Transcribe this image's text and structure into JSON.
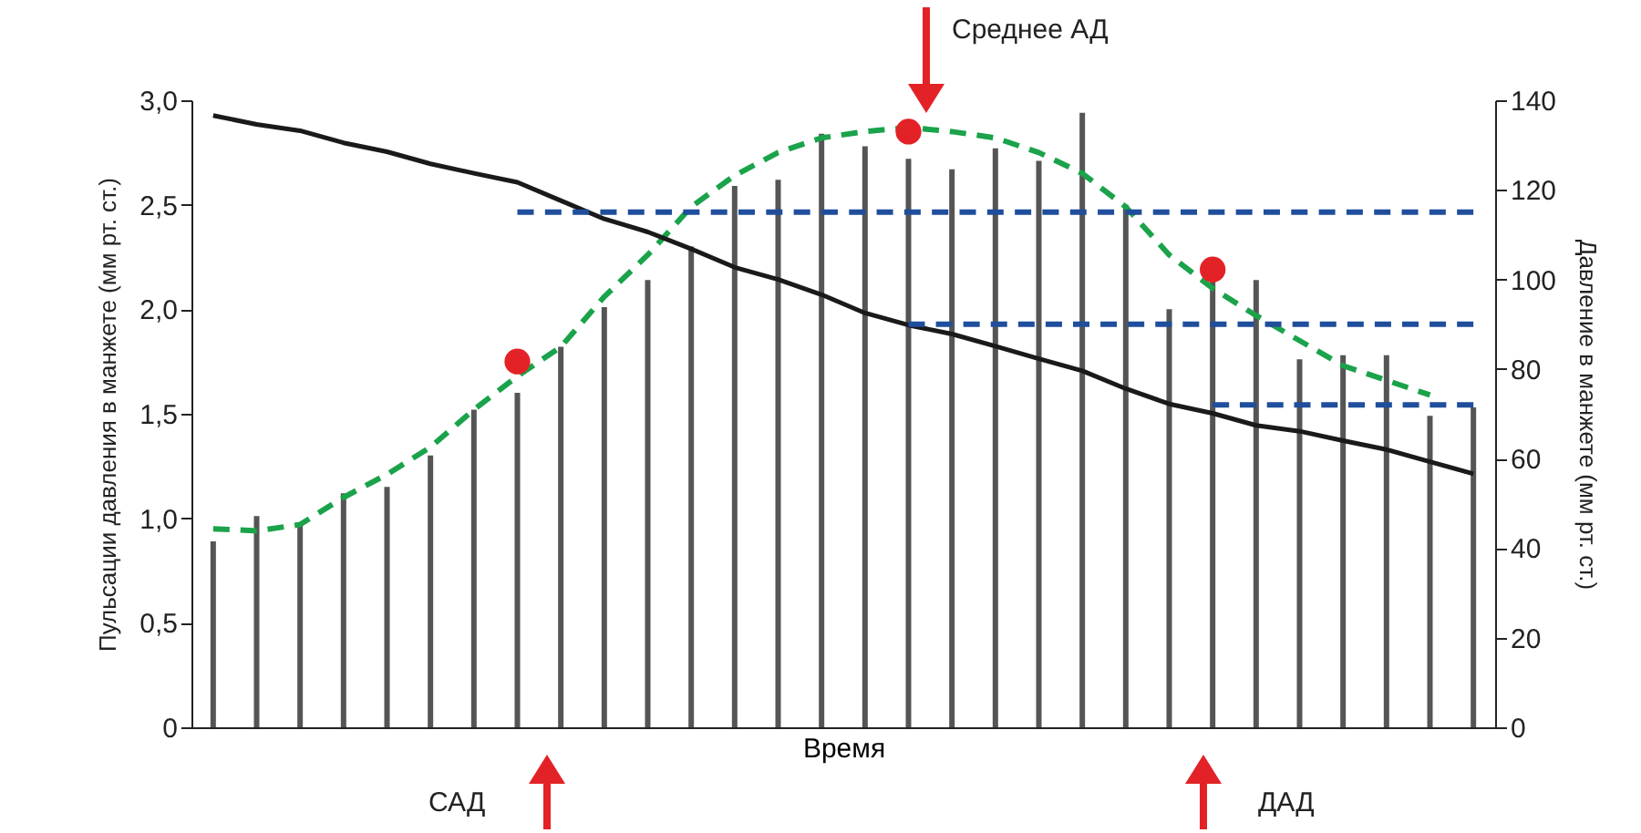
{
  "chart_data": {
    "type": "bar",
    "xlabel": "Время",
    "ylabel": "Пульсации давления в манжете (мм рт. ст.)",
    "y2label": "Давление в манжете (мм рт. ст.)",
    "categories": [
      null,
      null,
      null,
      null,
      null,
      null,
      null,
      null,
      null,
      null,
      null,
      null,
      null,
      null,
      null,
      null,
      null,
      null,
      null,
      null,
      null,
      null,
      null,
      null,
      null,
      null,
      null,
      null,
      null,
      null
    ],
    "ylim": [
      0,
      3
    ],
    "yticks": [
      0,
      {
        "value": 0.5,
        "label": "0,5"
      },
      {
        "value": 1,
        "label": "1,0"
      },
      {
        "value": 1.5,
        "label": "1,5"
      },
      {
        "value": 2,
        "label": "2,0"
      },
      {
        "value": 2.5,
        "label": "2,5"
      },
      {
        "value": 3,
        "label": "3,0"
      }
    ],
    "y2lim": [
      0,
      140
    ],
    "y2ticks": [
      0,
      20,
      40,
      60,
      80,
      100,
      120,
      140
    ],
    "series": [
      {
        "color": "#555555",
        "values": [
          0.89,
          1.01,
          0.98,
          1.12,
          1.15,
          1.3,
          1.52,
          1.6,
          1.82,
          2.01,
          2.14,
          2.3,
          2.59,
          2.62,
          2.84,
          2.78,
          2.72,
          2.67,
          2.77,
          2.71,
          2.94,
          2.5,
          2.0,
          2.14,
          2.14,
          1.76,
          1.78,
          1.78,
          1.49,
          1.53
        ]
      },
      {
        "type": "line",
        "axis": "y2",
        "color": "#1a1a1a",
        "line_style": "solid",
        "values": [
          136.6,
          134.6,
          133.2,
          130.5,
          128.5,
          125.8,
          123.7,
          121.7,
          117.6,
          113.5,
          110.6,
          106.8,
          102.7,
          100,
          96.6,
          92.5,
          89.8,
          87.8,
          85.1,
          82.3,
          79.6,
          75.6,
          72.2,
          70.1,
          67.4,
          66.1,
          64,
          62,
          59.3,
          56.6
        ]
      },
      {
        "type": "line",
        "axis": "y2",
        "color": "#1f4e9c",
        "line_style": "dashed",
        "values": [
          null,
          null,
          null,
          null,
          null,
          null,
          null,
          115,
          115,
          115,
          115,
          115,
          115,
          115,
          115,
          115,
          115,
          115,
          115,
          115,
          115,
          115,
          115,
          115,
          115,
          115,
          115,
          115,
          115,
          115
        ]
      },
      {
        "type": "line",
        "axis": "y2",
        "color": "#1f4e9c",
        "line_style": "dashed",
        "values": [
          null,
          null,
          null,
          null,
          null,
          null,
          null,
          null,
          null,
          null,
          null,
          null,
          null,
          null,
          null,
          null,
          90,
          90,
          90,
          90,
          90,
          90,
          90,
          90,
          90,
          90,
          90,
          90,
          90,
          90
        ]
      },
      {
        "type": "line",
        "axis": "y2",
        "color": "#1f4e9c",
        "line_style": "dashed",
        "values": [
          null,
          null,
          null,
          null,
          null,
          null,
          null,
          null,
          null,
          null,
          null,
          null,
          null,
          null,
          null,
          null,
          null,
          null,
          null,
          null,
          null,
          null,
          null,
          72,
          72,
          72,
          72,
          72,
          72,
          72
        ]
      },
      {
        "type": "line",
        "color": "#1aa34a",
        "line_style": "dashed",
        "values": [
          0.95,
          0.94,
          0.97,
          1.1,
          1.21,
          1.34,
          1.52,
          1.68,
          1.82,
          2.06,
          2.26,
          2.49,
          2.64,
          2.75,
          2.82,
          2.85,
          2.87,
          2.85,
          2.82,
          2.75,
          2.65,
          2.49,
          2.26,
          2.1,
          1.97,
          1.85,
          1.73,
          1.66,
          1.59,
          null
        ]
      },
      {
        "type": "scatter",
        "color": "#e32227",
        "marker": "circle",
        "values": [
          null,
          null,
          null,
          null,
          null,
          null,
          null,
          1.75,
          null,
          null,
          null,
          null,
          null,
          null,
          null,
          null,
          2.85,
          null,
          null,
          null,
          null,
          null,
          null,
          2.19,
          null,
          null,
          null,
          null,
          null,
          null
        ]
      }
    ],
    "annotations": [
      "Среднее АД",
      "САД",
      "ДАД"
    ],
    "grid": false
  }
}
